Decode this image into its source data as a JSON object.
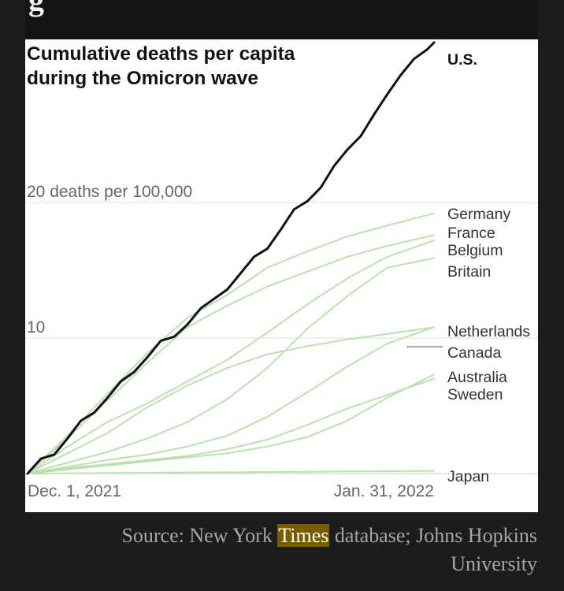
{
  "header": {
    "cut_off_text": "g"
  },
  "source": {
    "prefix": "Source: New York ",
    "highlight": "Times",
    "suffix": " database; Johns Hopkins University"
  },
  "colors": {
    "us_line": "#121212",
    "other_lines": "#bde0b0",
    "gridline": "#dddddd",
    "axis_text": "#666666",
    "label_text": "#333333",
    "highlight_bg": "#7a5c00"
  },
  "chart_data": {
    "type": "line",
    "title": "Cumulative deaths per capita during the Omicron wave",
    "y_unit_label": "20 deaths per 100,000",
    "y_ticks": [
      {
        "value": 20,
        "label": "20 deaths per 100,000"
      },
      {
        "value": 10,
        "label": "10"
      }
    ],
    "ylim": [
      0,
      32
    ],
    "x_range": [
      0,
      61
    ],
    "x_tick_labels": [
      {
        "x": 0,
        "label": "Dec. 1, 2021"
      },
      {
        "x": 61,
        "label": "Jan. 31, 2022"
      }
    ],
    "series": [
      {
        "name": "U.S.",
        "label": "U.S.",
        "highlight": true,
        "x": [
          0,
          2,
          4,
          6,
          8,
          10,
          12,
          14,
          16,
          18,
          20,
          22,
          24,
          26,
          28,
          30,
          32,
          34,
          36,
          38,
          40,
          42,
          44,
          46,
          48,
          50,
          52,
          54,
          56,
          58,
          60,
          61
        ],
        "values": [
          0,
          1.1,
          1.4,
          2.6,
          3.9,
          4.5,
          5.6,
          6.8,
          7.5,
          8.6,
          9.8,
          10.1,
          11.0,
          12.2,
          12.9,
          13.6,
          14.8,
          16.0,
          16.6,
          18.0,
          19.5,
          20.1,
          21.1,
          22.7,
          23.9,
          24.9,
          26.5,
          28.0,
          29.4,
          30.6,
          31.3,
          31.8
        ]
      },
      {
        "name": "Germany",
        "label": "Germany",
        "x": [
          0,
          6,
          12,
          18,
          24,
          30,
          36,
          42,
          48,
          54,
          61
        ],
        "values": [
          0,
          2.8,
          5.9,
          8.9,
          11.5,
          13.2,
          15.2,
          16.4,
          17.5,
          18.3,
          19.2
        ]
      },
      {
        "name": "France",
        "label": "France",
        "x": [
          0,
          6,
          12,
          18,
          24,
          30,
          36,
          42,
          48,
          54,
          61
        ],
        "values": [
          0,
          2.6,
          5.4,
          8.2,
          10.8,
          12.4,
          13.8,
          14.9,
          16.0,
          16.8,
          17.6
        ]
      },
      {
        "name": "Belgium",
        "label": "Belgium",
        "x": [
          0,
          6,
          12,
          18,
          24,
          30,
          36,
          42,
          48,
          54,
          61
        ],
        "values": [
          0,
          2.0,
          3.8,
          5.2,
          6.8,
          8.4,
          10.4,
          12.5,
          14.4,
          16.0,
          17.2
        ]
      },
      {
        "name": "Britain",
        "label": "Britain",
        "x": [
          0,
          6,
          12,
          18,
          24,
          30,
          36,
          42,
          48,
          54,
          61
        ],
        "values": [
          0,
          0.8,
          1.6,
          2.6,
          3.8,
          5.5,
          7.8,
          10.7,
          13.1,
          15.2,
          15.9
        ]
      },
      {
        "name": "Netherlands",
        "label": "Netherlands",
        "x": [
          0,
          6,
          12,
          18,
          24,
          30,
          36,
          42,
          48,
          54,
          61
        ],
        "values": [
          0,
          1.5,
          3.0,
          4.9,
          6.5,
          7.8,
          8.8,
          9.4,
          9.9,
          10.3,
          10.8
        ]
      },
      {
        "name": "Canada",
        "label": "Canada",
        "x": [
          0,
          6,
          12,
          18,
          24,
          30,
          36,
          42,
          48,
          54,
          61
        ],
        "values": [
          0,
          0.5,
          1.0,
          1.4,
          2.0,
          2.8,
          4.2,
          6.0,
          7.9,
          9.6,
          10.8
        ]
      },
      {
        "name": "Australia",
        "label": "Australia",
        "x": [
          0,
          6,
          12,
          18,
          24,
          30,
          36,
          42,
          48,
          54,
          61
        ],
        "values": [
          0,
          0.3,
          0.6,
          0.9,
          1.2,
          1.5,
          2.0,
          2.7,
          3.9,
          5.6,
          7.3
        ]
      },
      {
        "name": "Sweden",
        "label": "Sweden",
        "x": [
          0,
          6,
          12,
          18,
          24,
          30,
          36,
          42,
          48,
          54,
          61
        ],
        "values": [
          0,
          0.4,
          0.7,
          1.0,
          1.3,
          1.8,
          2.5,
          3.6,
          4.8,
          5.8,
          7.0
        ]
      },
      {
        "name": "Japan",
        "label": "Japan",
        "x": [
          0,
          61
        ],
        "values": [
          0,
          0.2
        ]
      }
    ],
    "grid": true,
    "legend": "direct labels at right end"
  }
}
